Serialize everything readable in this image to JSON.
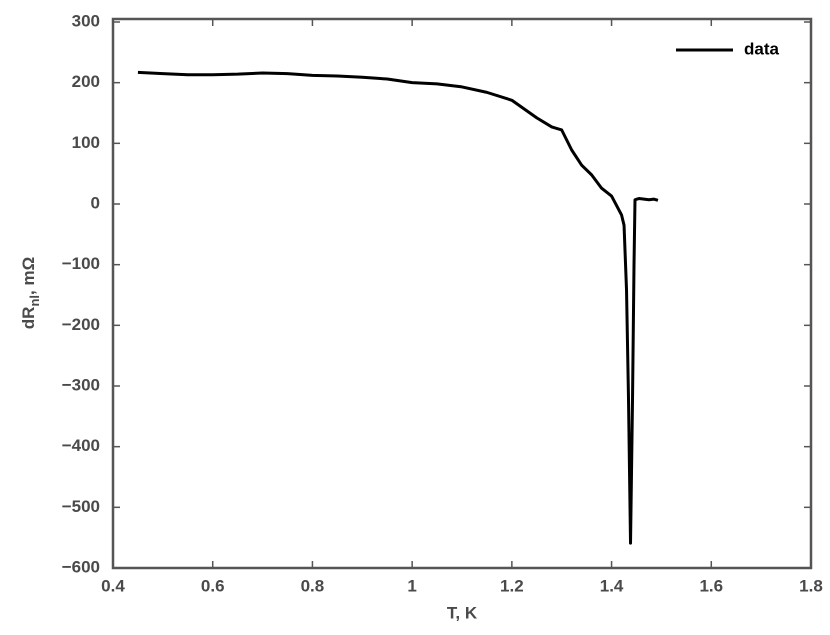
{
  "chart_data": {
    "type": "line",
    "xlabel": "T, K",
    "ylabel": {
      "main": "dR",
      "sub": "nl",
      "rest": ", mΩ"
    },
    "xlim": [
      0.4,
      1.8
    ],
    "xticks": [
      0.4,
      0.6,
      0.8,
      1,
      1.2,
      1.4,
      1.6,
      1.8
    ],
    "ylim": [
      -600,
      300
    ],
    "yticks": [
      {
        "value": -600,
        "label": "−600"
      },
      {
        "value": -500,
        "label": "−500"
      },
      {
        "value": -400,
        "label": "−400"
      },
      {
        "value": -300,
        "label": "−300"
      },
      {
        "value": -200,
        "label": "−200"
      },
      {
        "value": -100,
        "label": "−100"
      },
      0,
      100,
      200,
      300
    ],
    "grid": false,
    "legend": "upper right",
    "series": [
      {
        "name": "data",
        "color": "#000000",
        "x": [
          0.45,
          0.5,
          0.55,
          0.6,
          0.65,
          0.7,
          0.75,
          0.8,
          0.85,
          0.9,
          0.95,
          1.0,
          1.05,
          1.1,
          1.15,
          1.2,
          1.25,
          1.28,
          1.3,
          1.32,
          1.34,
          1.36,
          1.38,
          1.4,
          1.42,
          1.425,
          1.43,
          1.434,
          1.438,
          1.442,
          1.445,
          1.447,
          1.455,
          1.465,
          1.475,
          1.485,
          1.493
        ],
        "values": [
          217,
          215,
          213,
          213,
          214,
          216,
          215,
          212,
          211,
          209,
          206,
          200,
          198,
          193,
          184,
          171,
          142,
          127,
          122,
          89,
          64,
          48,
          26,
          13,
          -18,
          -35,
          -142,
          -323,
          -559,
          -323,
          -100,
          7,
          9,
          8,
          7,
          8,
          6
        ]
      }
    ]
  }
}
